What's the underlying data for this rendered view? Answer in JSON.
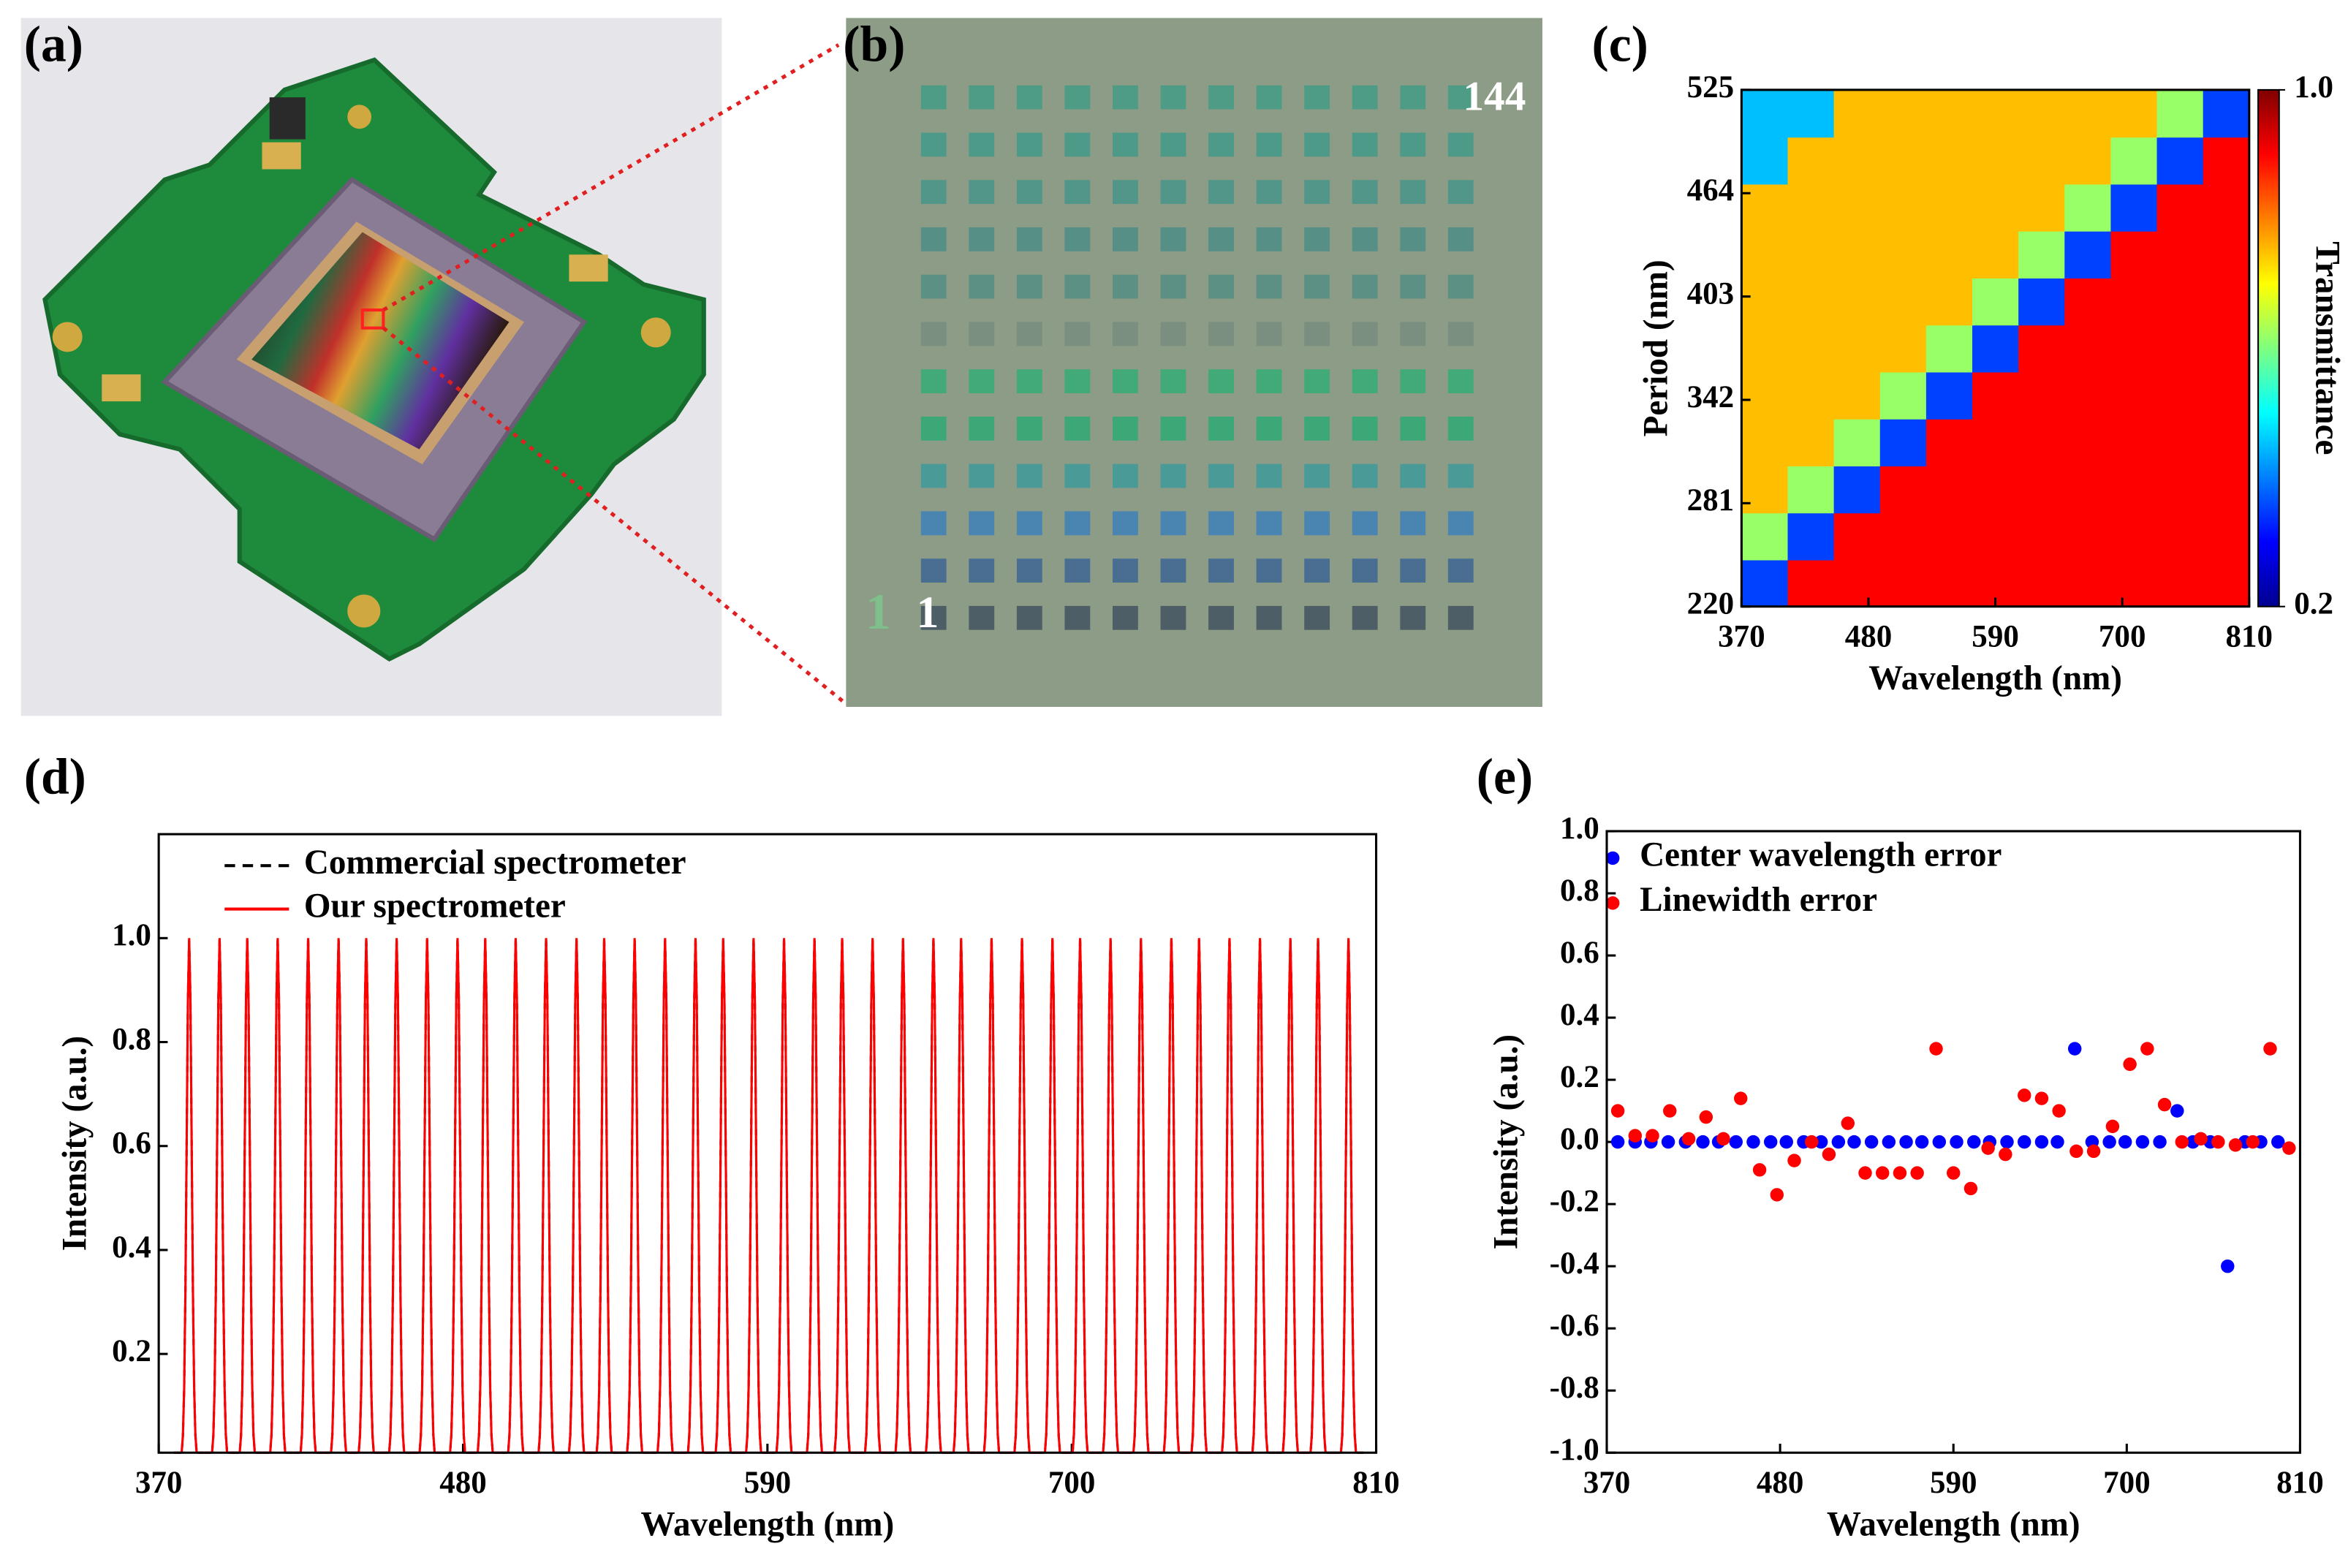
{
  "panel_labels": [
    "(a)",
    "(b)",
    "(c)",
    "(d)",
    "(e)"
  ],
  "photo_b": {
    "labels": [
      "144",
      "1"
    ]
  },
  "chart_data": [
    {
      "type": "heatmap",
      "xlabel": "Wavelength (nm)",
      "ylabel": "Period (nm)",
      "xlim": [
        370,
        810
      ],
      "xticks": [
        370,
        480,
        590,
        700,
        810
      ],
      "ylim": [
        220,
        525
      ],
      "yticks": [
        220,
        281,
        342,
        403,
        464,
        525
      ],
      "z": [
        [
          0.35,
          0.9,
          0.9,
          0.9,
          0.9,
          0.9,
          0.9,
          0.9,
          0.9,
          0.9,
          0.9
        ],
        [
          0.62,
          0.35,
          0.9,
          0.9,
          0.9,
          0.9,
          0.9,
          0.9,
          0.9,
          0.9,
          0.9
        ],
        [
          0.75,
          0.62,
          0.35,
          0.9,
          0.9,
          0.9,
          0.9,
          0.9,
          0.9,
          0.9,
          0.9
        ],
        [
          0.75,
          0.75,
          0.62,
          0.35,
          0.9,
          0.9,
          0.9,
          0.9,
          0.9,
          0.9,
          0.9
        ],
        [
          0.75,
          0.75,
          0.75,
          0.62,
          0.35,
          0.9,
          0.9,
          0.9,
          0.9,
          0.9,
          0.9
        ],
        [
          0.75,
          0.75,
          0.75,
          0.75,
          0.62,
          0.35,
          0.9,
          0.9,
          0.9,
          0.9,
          0.9
        ],
        [
          0.75,
          0.75,
          0.75,
          0.75,
          0.75,
          0.62,
          0.35,
          0.9,
          0.9,
          0.9,
          0.9
        ],
        [
          0.75,
          0.75,
          0.75,
          0.75,
          0.75,
          0.75,
          0.62,
          0.35,
          0.9,
          0.9,
          0.9
        ],
        [
          0.75,
          0.75,
          0.75,
          0.75,
          0.75,
          0.75,
          0.75,
          0.62,
          0.35,
          0.9,
          0.9
        ],
        [
          0.45,
          0.75,
          0.75,
          0.75,
          0.75,
          0.75,
          0.75,
          0.75,
          0.62,
          0.35,
          0.9
        ],
        [
          0.45,
          0.45,
          0.75,
          0.75,
          0.75,
          0.75,
          0.75,
          0.75,
          0.75,
          0.62,
          0.35
        ]
      ],
      "colorbar": {
        "label": "Transmittance",
        "lim": [
          0.2,
          1
        ],
        "ticks": [
          0.2,
          {
            "value": 1,
            "label": "1.0"
          }
        ],
        "colormap": "jet"
      }
    },
    {
      "type": "spectrum",
      "xlabel": "Wavelength (nm)",
      "ylabel": "Intensity (a.u.)",
      "xlim": [
        370,
        810
      ],
      "xticks": [
        370,
        480,
        590,
        700,
        810
      ],
      "ylim": [
        0.01,
        1.2
      ],
      "yticks": [
        0.2,
        0.4,
        0.6,
        0.8,
        {
          "value": 1,
          "label": "1.0"
        }
      ],
      "legend": "upper left",
      "x": [
        381,
        392,
        402,
        413,
        424,
        435,
        445,
        456,
        467,
        478,
        488,
        499,
        510,
        521,
        531,
        542,
        553,
        564,
        574,
        585,
        596,
        607,
        617,
        628,
        639,
        650,
        660,
        671,
        682,
        693,
        703,
        714,
        725,
        736,
        746,
        757,
        768,
        779,
        789,
        800
      ],
      "series": [
        {
          "name": "Commercial spectrometer",
          "color": "#000000",
          "dash": true,
          "values": [
            1,
            1,
            1,
            1,
            1,
            1,
            1,
            1,
            1,
            1,
            1,
            1,
            1,
            1,
            1,
            1,
            1,
            1,
            1,
            1,
            1,
            1,
            1,
            1,
            1,
            1,
            1,
            1,
            1,
            1,
            1,
            1,
            1,
            1,
            1,
            1,
            1,
            1,
            1,
            1
          ]
        },
        {
          "name": "Our spectrometer",
          "color": "#ff0000",
          "dash": false,
          "values": [
            1,
            1,
            1,
            1,
            1,
            1,
            1,
            1,
            1,
            1,
            1,
            1,
            1,
            1,
            1,
            1,
            1,
            1,
            1,
            1,
            1,
            1,
            1,
            1,
            1,
            1,
            1,
            1,
            1,
            1,
            1,
            1,
            1,
            1,
            1,
            1,
            1,
            1,
            1,
            1
          ]
        }
      ]
    },
    {
      "type": "scatter",
      "xlabel": "Wavelength (nm)",
      "ylabel": "Intensity (a.u.)",
      "xlim": [
        370,
        810
      ],
      "xticks": [
        370,
        480,
        590,
        700,
        810
      ],
      "ylim": [
        -1,
        1
      ],
      "yticks": [
        {
          "value": -1,
          "label": "-1.0"
        },
        -0.8,
        -0.6,
        -0.4,
        -0.2,
        {
          "value": 0,
          "label": "0.0"
        },
        0.2,
        0.4,
        0.6,
        0.8,
        {
          "value": 1,
          "label": "1.0"
        }
      ],
      "legend": "upper left",
      "series": [
        {
          "name": "Center wavelength error",
          "color": "#0000ff",
          "x": [
            377,
            388,
            398,
            409,
            420,
            431,
            441,
            452,
            463,
            474,
            484,
            495,
            506,
            517,
            527,
            538,
            549,
            560,
            570,
            581,
            592,
            603,
            613,
            624,
            635,
            646,
            656,
            667,
            678,
            689,
            699,
            710,
            721,
            732,
            742,
            753,
            764,
            775,
            785,
            796
          ],
          "values": [
            0,
            0,
            0,
            0,
            0,
            0,
            0,
            0,
            0,
            0,
            0,
            0,
            0,
            0,
            0,
            0,
            0,
            0,
            0,
            0,
            0,
            0,
            0,
            0,
            0,
            0,
            0,
            0.3,
            0,
            0,
            0,
            0,
            0,
            0.1,
            0,
            0,
            -0.4,
            0,
            0,
            0
          ]
        },
        {
          "name": "Linewidth error",
          "color": "#ff0000",
          "x": [
            377,
            388,
            399,
            410,
            422,
            433,
            444,
            455,
            467,
            478,
            489,
            500,
            511,
            523,
            534,
            545,
            556,
            567,
            579,
            590,
            601,
            612,
            623,
            635,
            646,
            657,
            668,
            679,
            691,
            702,
            713,
            724,
            735,
            747,
            758,
            769,
            780,
            791,
            803
          ],
          "values": [
            0.1,
            0.02,
            0.02,
            0.1,
            0.01,
            0.08,
            0.01,
            0.14,
            -0.09,
            -0.17,
            -0.06,
            0,
            -0.04,
            0.06,
            -0.1,
            -0.1,
            -0.1,
            -0.1,
            0.3,
            -0.1,
            -0.15,
            -0.02,
            -0.04,
            0.15,
            0.14,
            0.1,
            -0.03,
            -0.03,
            0.05,
            0.25,
            0.3,
            0.12,
            0,
            0.01,
            0,
            -0.01,
            0,
            0.3,
            -0.02
          ]
        }
      ]
    }
  ]
}
